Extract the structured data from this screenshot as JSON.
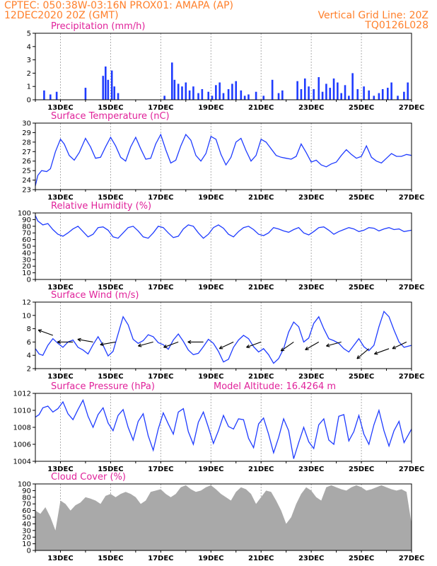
{
  "header": {
    "line1_left": "CPTEC:   050:38W-03:16N   PROX01: AMAPA (AP)",
    "line2_left": "12DEC2020 20Z (GMT)",
    "line2_right": "Vertical Grid Line: 20Z",
    "line3_right": "TQ0126L028"
  },
  "x_axis": {
    "labels": [
      "13DEC",
      "15DEC",
      "17DEC",
      "19DEC",
      "21DEC",
      "23DEC",
      "25DEC",
      "27DEC"
    ],
    "range_days": [
      0,
      15
    ]
  },
  "chart_data": [
    {
      "type": "bar",
      "title": "Precipitation (mm/h)",
      "ylim": [
        0,
        5
      ],
      "yticks": [
        0,
        1,
        2,
        3,
        4,
        5
      ],
      "color": "#1f3cff",
      "x": [
        0.35,
        0.6,
        0.85,
        2.0,
        2.7,
        2.8,
        2.9,
        3.05,
        3.15,
        3.3,
        5.15,
        5.45,
        5.55,
        5.7,
        5.85,
        6.0,
        6.15,
        6.3,
        6.5,
        6.65,
        6.9,
        7.05,
        7.2,
        7.35,
        7.5,
        7.7,
        7.85,
        8.0,
        8.2,
        8.35,
        8.5,
        8.8,
        9.1,
        9.45,
        9.7,
        9.85,
        10.45,
        10.6,
        10.75,
        10.9,
        11.1,
        11.3,
        11.45,
        11.6,
        11.75,
        11.9,
        12.05,
        12.2,
        12.35,
        12.5,
        12.65,
        12.85,
        13.1,
        13.3,
        13.5,
        13.7,
        13.85,
        14.05,
        14.2,
        14.45,
        14.7,
        14.85
      ],
      "values": [
        0.7,
        0.4,
        0.6,
        0.9,
        1.8,
        2.5,
        1.5,
        2.2,
        1.0,
        0.5,
        0.3,
        2.8,
        1.5,
        1.2,
        1.0,
        1.3,
        0.7,
        1.0,
        0.5,
        0.8,
        0.6,
        0.3,
        1.1,
        1.3,
        0.5,
        0.8,
        1.2,
        1.4,
        0.7,
        0.3,
        0.4,
        0.6,
        0.3,
        1.5,
        0.5,
        0.7,
        1.4,
        0.8,
        1.6,
        1.0,
        0.8,
        1.7,
        0.6,
        1.2,
        0.9,
        1.6,
        1.3,
        0.5,
        1.1,
        0.3,
        2.0,
        0.8,
        1.0,
        0.7,
        0.3,
        0.5,
        0.8,
        0.9,
        1.3,
        0.3,
        0.6,
        1.3
      ],
      "xlabel": "",
      "ylabel": ""
    },
    {
      "type": "line",
      "title": "Surface Temperature (nC)",
      "ylim": [
        23,
        30
      ],
      "yticks": [
        23,
        24,
        25,
        26,
        27,
        28,
        29,
        30
      ],
      "color": "#1f3cff",
      "x": [
        0,
        0.1,
        0.25,
        0.45,
        0.6,
        0.8,
        1.0,
        1.15,
        1.35,
        1.55,
        1.75,
        2.0,
        2.2,
        2.4,
        2.6,
        2.8,
        3.0,
        3.2,
        3.4,
        3.6,
        3.8,
        4.0,
        4.2,
        4.4,
        4.6,
        4.8,
        5.0,
        5.2,
        5.4,
        5.6,
        5.8,
        6.0,
        6.2,
        6.4,
        6.6,
        6.8,
        7.0,
        7.2,
        7.4,
        7.6,
        7.8,
        8.0,
        8.2,
        8.4,
        8.6,
        8.8,
        9.0,
        9.2,
        9.4,
        9.6,
        9.8,
        10.0,
        10.2,
        10.4,
        10.6,
        10.8,
        11.0,
        11.2,
        11.4,
        11.6,
        11.8,
        12.0,
        12.2,
        12.4,
        12.6,
        12.8,
        13.0,
        13.2,
        13.4,
        13.6,
        13.8,
        14.0,
        14.2,
        14.4,
        14.6,
        14.8,
        15.0
      ],
      "values": [
        23.4,
        24.5,
        25.0,
        24.9,
        25.2,
        27.0,
        28.3,
        27.8,
        26.6,
        26.1,
        26.9,
        28.4,
        27.5,
        26.3,
        26.4,
        27.5,
        28.5,
        27.6,
        26.4,
        26.0,
        27.5,
        28.5,
        27.3,
        26.2,
        26.3,
        27.8,
        28.8,
        27.2,
        25.8,
        26.1,
        27.6,
        28.8,
        28.2,
        26.6,
        26.0,
        26.8,
        28.6,
        28.3,
        26.7,
        25.6,
        26.4,
        28.0,
        28.4,
        27.1,
        26.0,
        26.6,
        28.3,
        28.0,
        27.3,
        26.6,
        26.4,
        26.3,
        26.2,
        26.5,
        27.8,
        26.9,
        25.9,
        26.1,
        25.6,
        25.4,
        25.7,
        25.9,
        26.6,
        27.2,
        26.7,
        26.3,
        26.5,
        27.6,
        26.4,
        26.0,
        25.8,
        26.3,
        26.8,
        26.5,
        26.5,
        26.7,
        26.6
      ],
      "xlabel": "",
      "ylabel": ""
    },
    {
      "type": "line",
      "title": "Relative Humidity (%)",
      "ylim": [
        0,
        100
      ],
      "yticks": [
        0,
        10,
        20,
        30,
        40,
        50,
        60,
        70,
        80,
        90,
        100
      ],
      "color": "#1f3cff",
      "x": [
        0,
        0.1,
        0.3,
        0.5,
        0.7,
        0.9,
        1.1,
        1.3,
        1.5,
        1.7,
        1.9,
        2.1,
        2.3,
        2.5,
        2.7,
        2.9,
        3.1,
        3.3,
        3.5,
        3.7,
        3.9,
        4.1,
        4.3,
        4.5,
        4.7,
        4.9,
        5.1,
        5.3,
        5.5,
        5.7,
        5.9,
        6.1,
        6.3,
        6.5,
        6.7,
        6.9,
        7.1,
        7.3,
        7.5,
        7.7,
        7.9,
        8.1,
        8.3,
        8.5,
        8.7,
        8.9,
        9.1,
        9.3,
        9.5,
        9.7,
        9.9,
        10.1,
        10.3,
        10.5,
        10.7,
        10.9,
        11.1,
        11.3,
        11.5,
        11.7,
        11.9,
        12.1,
        12.3,
        12.5,
        12.7,
        12.9,
        13.1,
        13.3,
        13.5,
        13.7,
        13.9,
        14.1,
        14.3,
        14.5,
        14.7,
        15.0
      ],
      "values": [
        96,
        88,
        82,
        84,
        75,
        68,
        65,
        70,
        76,
        80,
        72,
        64,
        68,
        78,
        79,
        74,
        64,
        62,
        70,
        78,
        80,
        73,
        64,
        62,
        70,
        80,
        78,
        70,
        63,
        65,
        76,
        82,
        80,
        70,
        62,
        68,
        78,
        82,
        77,
        68,
        64,
        72,
        78,
        80,
        75,
        68,
        66,
        70,
        78,
        76,
        73,
        71,
        75,
        78,
        70,
        67,
        72,
        78,
        79,
        74,
        68,
        72,
        75,
        78,
        76,
        72,
        74,
        78,
        77,
        73,
        76,
        78,
        75,
        76,
        72,
        74
      ],
      "xlabel": "",
      "ylabel": ""
    },
    {
      "type": "line",
      "title": "Surface Wind (m/s)",
      "ylim": [
        2,
        12
      ],
      "yticks": [
        2,
        4,
        6,
        8,
        10,
        12
      ],
      "color": "#1f3cff",
      "arrow_color": "#000000",
      "x": [
        0,
        0.15,
        0.3,
        0.5,
        0.7,
        0.9,
        1.1,
        1.3,
        1.5,
        1.7,
        1.9,
        2.1,
        2.3,
        2.5,
        2.7,
        2.9,
        3.1,
        3.3,
        3.5,
        3.7,
        3.9,
        4.1,
        4.3,
        4.5,
        4.7,
        4.9,
        5.1,
        5.3,
        5.5,
        5.7,
        5.9,
        6.1,
        6.3,
        6.5,
        6.7,
        6.9,
        7.1,
        7.3,
        7.5,
        7.7,
        7.9,
        8.1,
        8.3,
        8.5,
        8.7,
        8.9,
        9.1,
        9.3,
        9.5,
        9.7,
        9.9,
        10.1,
        10.3,
        10.5,
        10.7,
        10.9,
        11.1,
        11.3,
        11.5,
        11.7,
        11.9,
        12.1,
        12.3,
        12.5,
        12.7,
        12.9,
        13.1,
        13.3,
        13.5,
        13.7,
        13.9,
        14.1,
        14.3,
        14.5,
        14.7,
        15.0
      ],
      "values": [
        5.0,
        4.2,
        4.0,
        5.5,
        6.5,
        5.8,
        5.2,
        6.0,
        6.3,
        5.2,
        4.8,
        4.2,
        5.6,
        6.8,
        5.5,
        3.9,
        4.6,
        7.2,
        9.8,
        8.6,
        6.4,
        5.8,
        6.2,
        7.1,
        6.8,
        5.9,
        5.6,
        4.9,
        6.3,
        7.2,
        6.1,
        4.8,
        4.1,
        4.3,
        5.3,
        6.4,
        5.8,
        4.6,
        3.0,
        3.4,
        5.2,
        6.3,
        7.0,
        6.5,
        5.3,
        4.5,
        5.0,
        4.1,
        2.8,
        3.5,
        5.0,
        7.5,
        9.0,
        8.3,
        6.0,
        6.6,
        8.8,
        9.8,
        8.0,
        6.5,
        6.2,
        5.8,
        5.0,
        4.5,
        5.5,
        6.5,
        5.3,
        4.7,
        5.5,
        8.3,
        10.6,
        9.8,
        7.8,
        6.0,
        5.2,
        5.5
      ],
      "arrows_x": [
        0.7,
        1.5,
        2.3,
        3.2,
        4.7,
        5.7,
        6.7,
        7.9,
        9.0,
        10.3,
        11.3,
        12.2,
        13.3,
        14.1,
        14.8
      ],
      "arrows_y": [
        7.0,
        6.0,
        6.0,
        6.0,
        6.0,
        6.0,
        6.0,
        6.0,
        6.0,
        6.0,
        6.0,
        6.0,
        5.0,
        5.0,
        6.0
      ],
      "arrows_dir_deg": [
        160,
        180,
        170,
        190,
        195,
        200,
        180,
        205,
        200,
        215,
        210,
        195,
        220,
        200,
        205
      ],
      "xlabel": "",
      "ylabel": ""
    },
    {
      "type": "line",
      "title": "Surface Pressure (hPa)",
      "subtitle": "Model Altitude: 16.4264 m",
      "ylim": [
        1004,
        1012
      ],
      "yticks": [
        1004,
        1006,
        1008,
        1010,
        1012
      ],
      "color": "#1f3cff",
      "x": [
        0,
        0.15,
        0.3,
        0.5,
        0.7,
        0.9,
        1.1,
        1.3,
        1.5,
        1.7,
        1.9,
        2.1,
        2.3,
        2.5,
        2.7,
        2.9,
        3.1,
        3.3,
        3.5,
        3.7,
        3.9,
        4.1,
        4.3,
        4.5,
        4.7,
        4.9,
        5.1,
        5.3,
        5.5,
        5.7,
        5.9,
        6.1,
        6.3,
        6.5,
        6.7,
        6.9,
        7.1,
        7.3,
        7.5,
        7.7,
        7.9,
        8.1,
        8.3,
        8.5,
        8.7,
        8.9,
        9.1,
        9.3,
        9.5,
        9.7,
        9.9,
        10.1,
        10.3,
        10.5,
        10.7,
        10.9,
        11.1,
        11.3,
        11.5,
        11.7,
        11.9,
        12.1,
        12.3,
        12.5,
        12.7,
        12.9,
        13.1,
        13.3,
        13.5,
        13.7,
        13.9,
        14.1,
        14.3,
        14.5,
        14.7,
        15.0
      ],
      "values": [
        1009.2,
        1009.5,
        1010.3,
        1010.5,
        1009.8,
        1010.2,
        1011.0,
        1009.6,
        1008.9,
        1010.1,
        1011.2,
        1009.3,
        1008.0,
        1009.5,
        1010.3,
        1008.5,
        1007.6,
        1009.4,
        1010.1,
        1008.0,
        1006.5,
        1008.7,
        1009.6,
        1007.0,
        1005.3,
        1007.8,
        1009.7,
        1008.4,
        1007.2,
        1009.8,
        1010.2,
        1007.5,
        1006.0,
        1008.6,
        1009.8,
        1008.0,
        1006.1,
        1007.6,
        1009.4,
        1008.1,
        1007.8,
        1009.0,
        1008.9,
        1006.7,
        1005.6,
        1008.4,
        1009.1,
        1007.2,
        1005.0,
        1006.8,
        1009.0,
        1007.6,
        1004.3,
        1006.2,
        1008.0,
        1006.3,
        1005.5,
        1008.3,
        1009.0,
        1006.5,
        1006.0,
        1009.3,
        1009.5,
        1006.4,
        1007.5,
        1009.4,
        1007.2,
        1006.0,
        1008.3,
        1010.0,
        1007.6,
        1005.8,
        1007.6,
        1008.7,
        1006.2,
        1007.8
      ],
      "xlabel": "",
      "ylabel": ""
    },
    {
      "type": "area",
      "title": "Cloud Cover (%)",
      "ylim": [
        0,
        100
      ],
      "yticks": [
        0,
        10,
        20,
        30,
        40,
        50,
        60,
        70,
        80,
        90,
        100
      ],
      "color": "#a9a9a9",
      "x": [
        0,
        0.2,
        0.4,
        0.6,
        0.8,
        1.0,
        1.2,
        1.4,
        1.6,
        1.8,
        2.0,
        2.2,
        2.4,
        2.6,
        2.8,
        3.0,
        3.2,
        3.4,
        3.6,
        3.8,
        4.0,
        4.2,
        4.4,
        4.6,
        4.8,
        5.0,
        5.2,
        5.4,
        5.6,
        5.8,
        6.0,
        6.2,
        6.4,
        6.6,
        6.8,
        7.0,
        7.2,
        7.4,
        7.6,
        7.8,
        8.0,
        8.2,
        8.4,
        8.6,
        8.8,
        9.0,
        9.2,
        9.4,
        9.6,
        9.8,
        10.0,
        10.2,
        10.4,
        10.6,
        10.8,
        11.0,
        11.2,
        11.4,
        11.6,
        11.8,
        12.0,
        12.2,
        12.4,
        12.6,
        12.8,
        13.0,
        13.2,
        13.4,
        13.6,
        13.8,
        14.0,
        14.2,
        14.4,
        14.6,
        14.8,
        15.0
      ],
      "values": [
        60,
        55,
        65,
        50,
        30,
        75,
        70,
        60,
        68,
        72,
        80,
        78,
        75,
        70,
        82,
        85,
        80,
        85,
        88,
        85,
        80,
        70,
        75,
        88,
        90,
        92,
        85,
        80,
        85,
        95,
        98,
        92,
        88,
        90,
        95,
        98,
        92,
        85,
        80,
        75,
        88,
        95,
        92,
        85,
        70,
        80,
        90,
        88,
        75,
        60,
        40,
        50,
        70,
        85,
        95,
        90,
        80,
        75,
        95,
        98,
        95,
        92,
        90,
        95,
        98,
        95,
        90,
        92,
        95,
        98,
        95,
        92,
        90,
        92,
        88,
        40
      ],
      "xlabel": "",
      "ylabel": ""
    }
  ]
}
